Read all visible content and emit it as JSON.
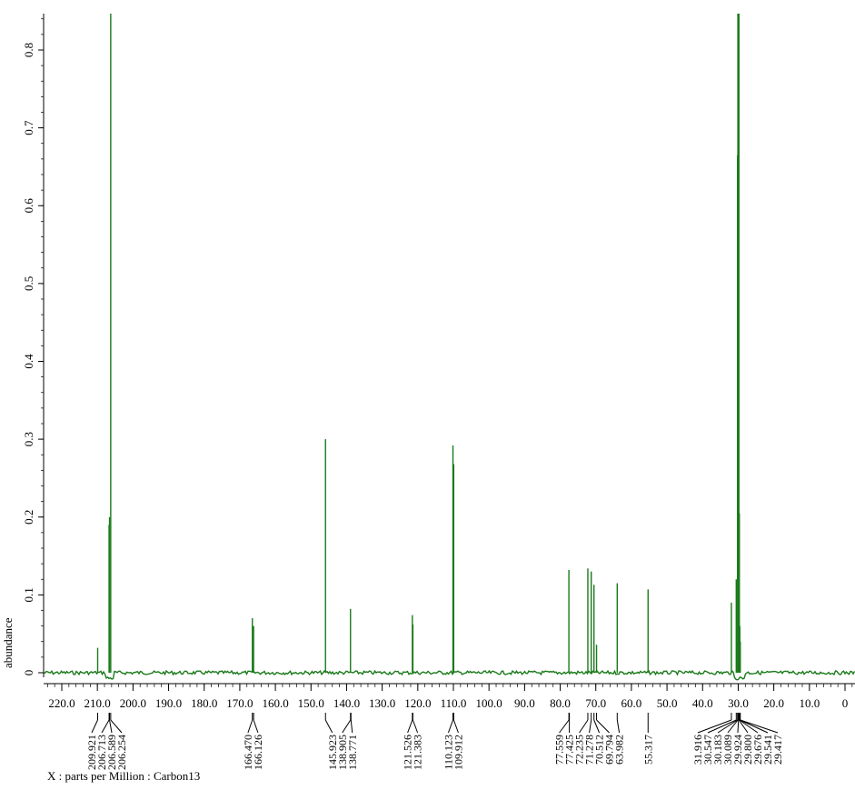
{
  "chart_data": {
    "type": "line",
    "title": "",
    "xlabel": "X : parts per Million : Carbon13",
    "ylabel": "abundance",
    "xlim": [
      226.0,
      -1.5
    ],
    "ylim": [
      -0.01,
      0.855
    ],
    "x_reversed": true,
    "grid": false,
    "series_color": "#1a7a1a",
    "x_ticks": [
      "220.0",
      "210.0",
      "200.0",
      "190.0",
      "180.0",
      "170.0",
      "160.0",
      "150.0",
      "140.0",
      "130.0",
      "120.0",
      "110.0",
      "100.0",
      "90.0",
      "80.0",
      "70.0",
      "60.0",
      "50.0",
      "40.0",
      "30.0",
      "20.0",
      "10.0",
      "0"
    ],
    "y_ticks": [
      "0",
      "0.1",
      "0.2",
      "0.3",
      "0.4",
      "0.5",
      "0.6",
      "0.7",
      "0.8"
    ],
    "peaks": [
      {
        "ppm": 209.921,
        "height": 0.032
      },
      {
        "ppm": 206.713,
        "height": 0.19
      },
      {
        "ppm": 206.589,
        "height": 0.2
      },
      {
        "ppm": 206.254,
        "height": 0.87
      },
      {
        "ppm": 166.47,
        "height": 0.07
      },
      {
        "ppm": 166.126,
        "height": 0.06
      },
      {
        "ppm": 145.923,
        "height": 0.3
      },
      {
        "ppm": 138.905,
        "height": 0.082
      },
      {
        "ppm": 121.526,
        "height": 0.074
      },
      {
        "ppm": 121.383,
        "height": 0.062
      },
      {
        "ppm": 110.123,
        "height": 0.292
      },
      {
        "ppm": 109.912,
        "height": 0.268
      },
      {
        "ppm": 77.559,
        "height": 0.132
      },
      {
        "ppm": 72.235,
        "height": 0.134
      },
      {
        "ppm": 71.278,
        "height": 0.13
      },
      {
        "ppm": 70.512,
        "height": 0.113
      },
      {
        "ppm": 69.794,
        "height": 0.036
      },
      {
        "ppm": 63.982,
        "height": 0.115
      },
      {
        "ppm": 55.317,
        "height": 0.107
      },
      {
        "ppm": 31.916,
        "height": 0.09
      },
      {
        "ppm": 30.547,
        "height": 0.12
      },
      {
        "ppm": 30.183,
        "height": 0.665
      },
      {
        "ppm": 30.089,
        "height": 0.87
      },
      {
        "ppm": 29.924,
        "height": 0.87
      },
      {
        "ppm": 29.8,
        "height": 0.87
      },
      {
        "ppm": 29.676,
        "height": 0.205
      },
      {
        "ppm": 29.541,
        "height": 0.06
      },
      {
        "ppm": 29.417,
        "height": 0.04
      }
    ],
    "peak_label_groups": [
      {
        "labels": [
          "209.921",
          "206.713",
          "206.589",
          "206.254"
        ],
        "ppm": [
          209.921,
          206.713,
          206.589,
          206.254
        ]
      },
      {
        "labels": [
          "166.470",
          "166.126"
        ],
        "ppm": [
          166.47,
          166.126
        ]
      },
      {
        "labels": [
          "145.923",
          "138.905",
          "138.771"
        ],
        "ppm": [
          145.923,
          138.905,
          138.771
        ]
      },
      {
        "labels": [
          "121.526",
          "121.383"
        ],
        "ppm": [
          121.526,
          121.383
        ]
      },
      {
        "labels": [
          "110.123",
          "109.912"
        ],
        "ppm": [
          110.123,
          109.912
        ]
      },
      {
        "labels": [
          "77.559",
          "77.425",
          "72.235",
          "71.278",
          "70.512",
          "69.794",
          "63.982"
        ],
        "ppm": [
          77.559,
          77.425,
          72.235,
          71.278,
          70.512,
          69.794,
          63.982
        ]
      },
      {
        "labels": [
          "55.317"
        ],
        "ppm": [
          55.317
        ]
      },
      {
        "labels": [
          "31.916",
          "30.547",
          "30.183",
          "30.089",
          "29.924",
          "29.800",
          "29.676",
          "29.541",
          "29.417"
        ],
        "ppm": [
          31.916,
          30.547,
          30.183,
          30.089,
          29.924,
          29.8,
          29.676,
          29.541,
          29.417
        ]
      }
    ]
  }
}
